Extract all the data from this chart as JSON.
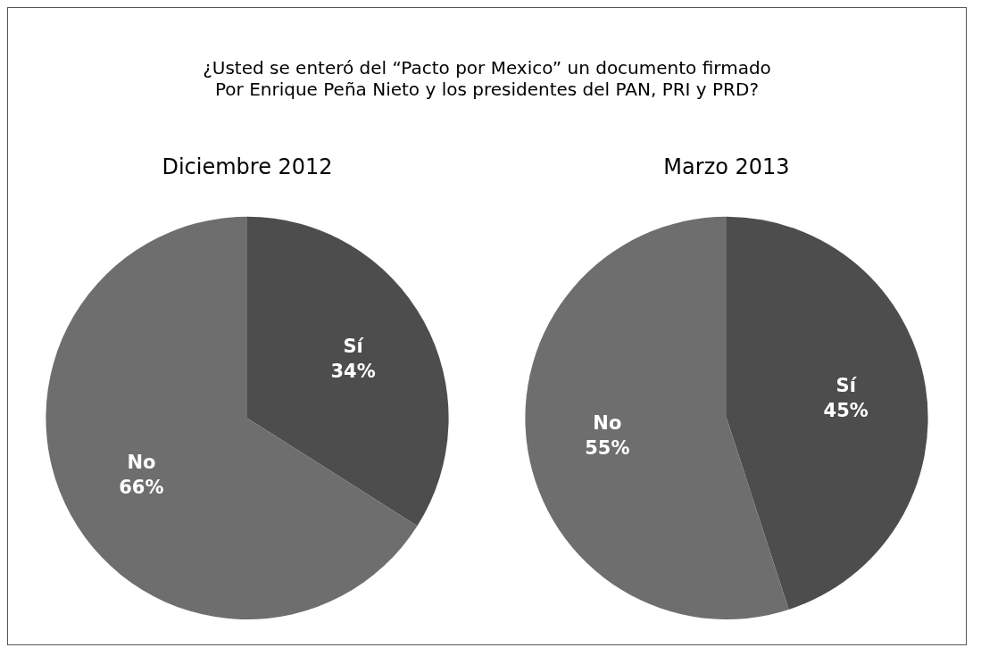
{
  "chart_data": [
    {
      "type": "other",
      "title": "¿Usted se enteró del “Pacto por Mexico” un documento firmado\nPor Enrique Peña Nieto y los presidentes del PAN, PRI y PRD?"
    },
    {
      "type": "pie",
      "title": "Diciembre 2012",
      "categories": [
        "Sí",
        "No"
      ],
      "values": [
        34,
        66
      ],
      "value_labels": [
        "34%",
        "66%"
      ],
      "colors": [
        "#4d4d4d",
        "#6e6e6e"
      ],
      "legend": false
    },
    {
      "type": "pie",
      "title": "Marzo 2013",
      "categories": [
        "Sí",
        "No"
      ],
      "values": [
        45,
        55
      ],
      "value_labels": [
        "45%",
        "55%"
      ],
      "colors": [
        "#4d4d4d",
        "#6e6e6e"
      ],
      "legend": false
    }
  ]
}
